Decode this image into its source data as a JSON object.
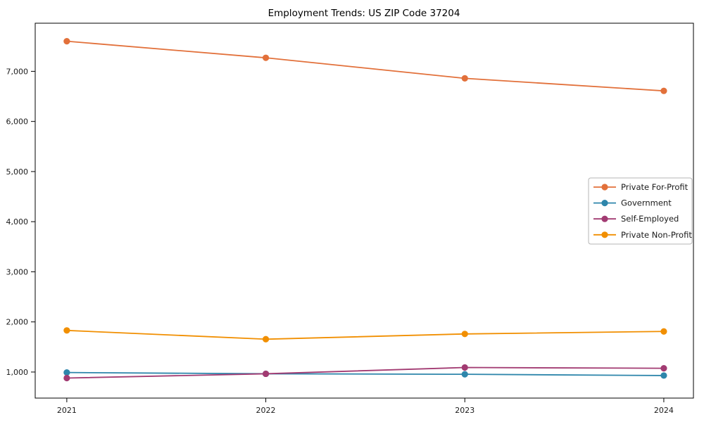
{
  "chart_data": {
    "type": "line",
    "title": "Employment Trends: US ZIP Code 37204",
    "categories": [
      "2021",
      "2022",
      "2023",
      "2024"
    ],
    "series": [
      {
        "name": "Private For-Profit",
        "color": "#E2703A",
        "values": [
          7600,
          7270,
          6860,
          6610
        ]
      },
      {
        "name": "Government",
        "color": "#2E86AB",
        "values": [
          990,
          965,
          955,
          930
        ]
      },
      {
        "name": "Self-Employed",
        "color": "#A23B72",
        "values": [
          880,
          965,
          1090,
          1075
        ]
      },
      {
        "name": "Private Non-Profit",
        "color": "#F18F01",
        "values": [
          1830,
          1655,
          1760,
          1810
        ]
      }
    ],
    "yticks": [
      1000,
      2000,
      3000,
      4000,
      5000,
      6000,
      7000
    ],
    "ytick_labels": [
      "1,000",
      "2,000",
      "3,000",
      "4,000",
      "5,000",
      "6,000",
      "7,000"
    ],
    "ylim": [
      480,
      7960
    ],
    "xlabel": "",
    "ylabel": "",
    "grid": false,
    "legend_position": "right-middle",
    "axis_color": "#000000",
    "tick_label_color": "#1a1a1a",
    "legend_border_color": "#b4b4b4",
    "background_color": "#ffffff"
  }
}
